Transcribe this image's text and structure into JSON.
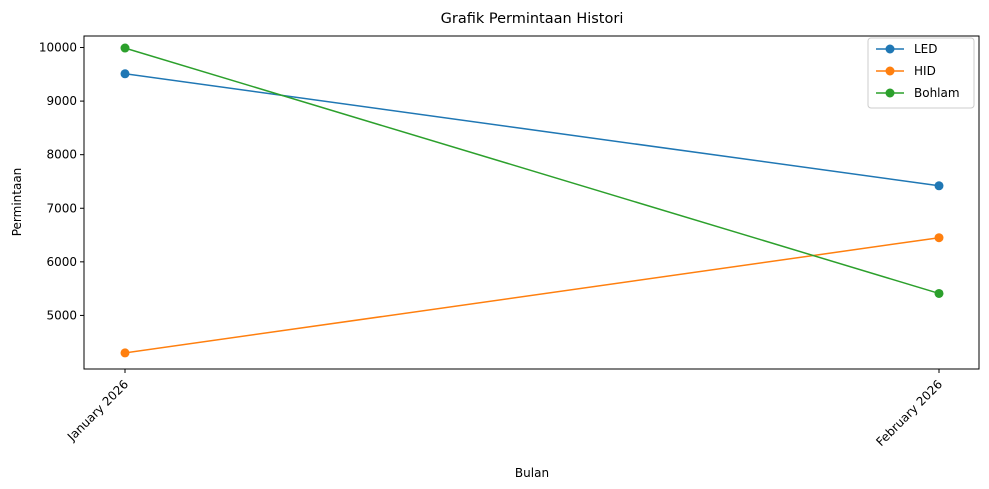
{
  "chart_data": {
    "type": "line",
    "title": "Grafik Permintaan Histori",
    "xlabel": "Bulan",
    "ylabel": "Permintaan",
    "categories": [
      "January 2026",
      "February 2026"
    ],
    "series": [
      {
        "name": "LED",
        "values": [
          9510,
          7420
        ],
        "color": "#1f77b4"
      },
      {
        "name": "HID",
        "values": [
          4300,
          6450
        ],
        "color": "#ff7f0e"
      },
      {
        "name": "Bohlam",
        "values": [
          9990,
          5410
        ],
        "color": "#2ca02c"
      }
    ],
    "yticks": [
      5000,
      6000,
      7000,
      8000,
      9000,
      10000
    ],
    "ylim": [
      4000,
      10215
    ],
    "grid": false,
    "legend": "top-right",
    "marker": "circle"
  }
}
